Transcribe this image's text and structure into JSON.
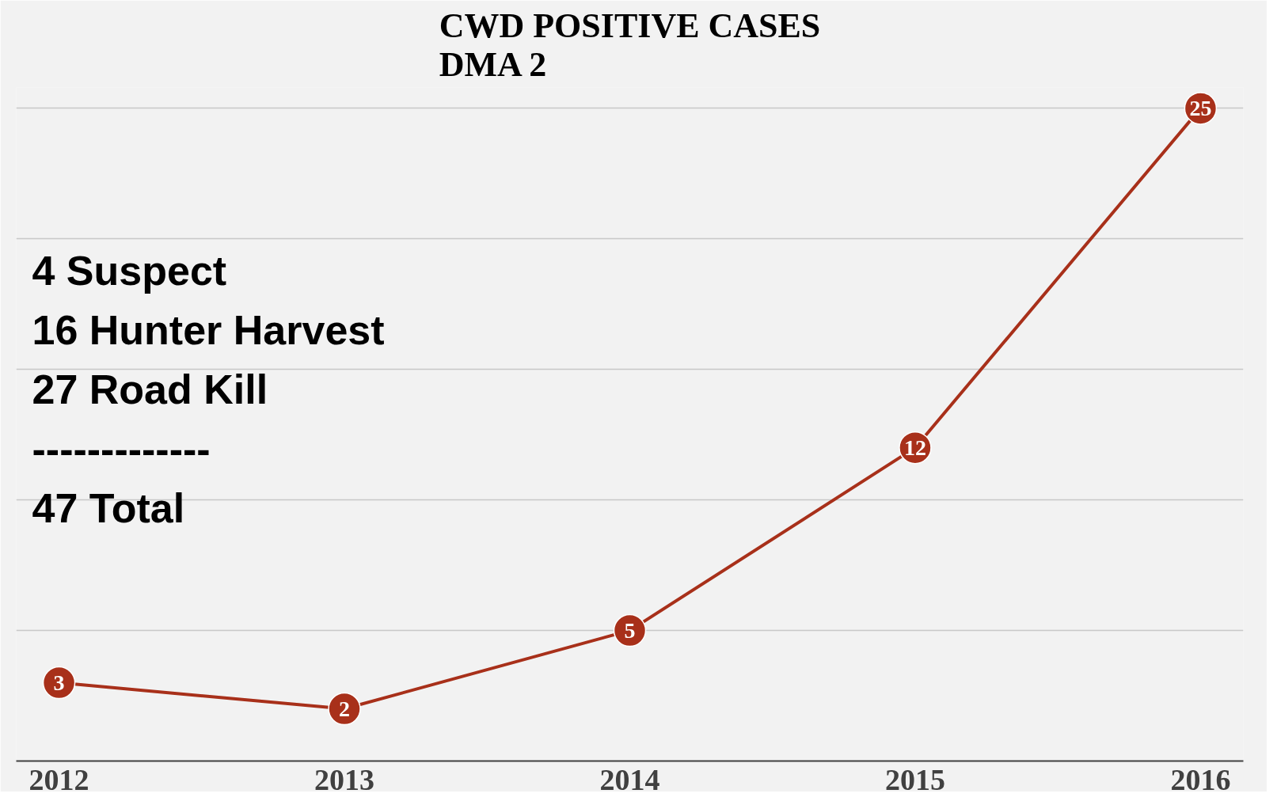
{
  "chart_data": {
    "type": "line",
    "title": "CWD POSITIVE CASES\nDMA 2",
    "categories": [
      "2012",
      "2013",
      "2014",
      "2015",
      "2016"
    ],
    "series": [
      {
        "color": "#a8301a",
        "values": [
          3,
          2,
          5,
          12,
          25
        ]
      }
    ],
    "ylim": [
      0,
      25.8
    ],
    "yticks": [
      {
        "value": 0,
        "label": null
      },
      {
        "value": 5,
        "label": null
      },
      {
        "value": 10,
        "label": null
      },
      {
        "value": 15,
        "label": null
      },
      {
        "value": 20,
        "label": null
      },
      {
        "value": 25,
        "label": null
      }
    ],
    "tick_labels": "x",
    "grid": "y",
    "data_labels": true,
    "marker": "circle",
    "line_style": "solid",
    "annotations": [
      "4 Suspect",
      "16 Hunter Harvest",
      "27 Road Kill",
      "-------------",
      "47 Total"
    ]
  }
}
